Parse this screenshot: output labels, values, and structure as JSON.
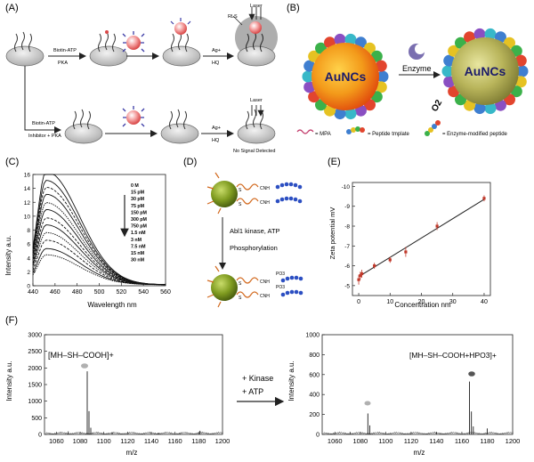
{
  "panels": {
    "A": "(A)",
    "B": "(B)",
    "C": "(C)",
    "D": "(D)",
    "E": "(E)",
    "F": "(F)"
  },
  "panel_a": {
    "top_steps": [
      "Biotin-ATP",
      "PKA"
    ],
    "ag_label": "Ag+",
    "hq_label": "HQ",
    "laser": "Laser",
    "rls": "RLS",
    "bottom_steps": [
      "Biotin-ATP",
      "Inhibitor + PKA"
    ],
    "no_signal": "No Signal Detected"
  },
  "panel_b": {
    "core_left": "AuNCs",
    "core_right": "AuNCs",
    "enzyme": "Enzyme",
    "o2": "O2",
    "legend": [
      "= MPA",
      "= Peptide tmplate",
      "= Enzyme-modified peptide"
    ]
  },
  "panel_d": {
    "step1": "Abl1 kinase, ATP",
    "step2": "Phosphorylation",
    "chem_top": [
      "S",
      "S",
      "CNH",
      "CNH"
    ],
    "chem_bottom": [
      "S",
      "S",
      "CNH",
      "CNH"
    ],
    "po3": "PO3"
  },
  "panel_f": {
    "left_label": "[MH–SH–COOH]+",
    "right_label": "[MH–SH–COOH+HPO3]+",
    "arrow_lines": [
      "+ Kinase",
      "+ ATP"
    ]
  },
  "chart_data": [
    {
      "type": "line",
      "panel": "C",
      "xlabel": "Wavelength nm",
      "ylabel": "Intensity a.u.",
      "xlim": [
        440,
        560
      ],
      "ylim": [
        0,
        16
      ],
      "xticks": [
        "440",
        "460",
        "480",
        "500",
        "520",
        "540",
        "560"
      ],
      "yticks": [
        "0",
        "2",
        "4",
        "6",
        "8",
        "10",
        "12",
        "14",
        "16"
      ],
      "legend": [
        "0 M",
        "15 pM",
        "30 pM",
        "75 pM",
        "150 pM",
        "300 pM",
        "750 pM",
        "1.5 nM",
        "3 nM",
        "7.5 nM",
        "15 nM",
        "30 nM"
      ],
      "peak_x": 452,
      "series": [
        {
          "name": "0 M",
          "peak": 16.3
        },
        {
          "name": "15 pM",
          "peak": 15.0
        },
        {
          "name": "30 pM",
          "peak": 14.0
        },
        {
          "name": "75 pM",
          "peak": 13.0
        },
        {
          "name": "150 pM",
          "peak": 11.8
        },
        {
          "name": "300 pM",
          "peak": 10.8
        },
        {
          "name": "750 pM",
          "peak": 9.6
        },
        {
          "name": "1.5 nM",
          "peak": 8.6
        },
        {
          "name": "3 nM",
          "peak": 7.5
        },
        {
          "name": "7.5 nM",
          "peak": 6.4
        },
        {
          "name": "15 nM",
          "peak": 5.2
        },
        {
          "name": "30 nM",
          "peak": 4.3
        }
      ]
    },
    {
      "type": "scatter",
      "panel": "E",
      "xlabel": "Concentration nm",
      "ylabel": "Zeta potential mV",
      "xlim": [
        0,
        40
      ],
      "ylim": [
        -4,
        -10
      ],
      "xticks": [
        "0",
        "10",
        "20",
        "30",
        "40"
      ],
      "yticks": [
        "-4",
        "-5",
        "-6",
        "-7",
        "-8",
        "-9",
        "-10"
      ],
      "x": [
        0,
        0.5,
        1,
        5,
        10,
        15,
        25,
        40
      ],
      "y": [
        -5.3,
        -5.5,
        -5.6,
        -6.0,
        -6.3,
        -6.7,
        -8.0,
        -9.4
      ],
      "err": [
        0.25,
        0.2,
        0.2,
        0.15,
        0.15,
        0.25,
        0.2,
        0.15
      ],
      "fit": {
        "x": [
          0,
          40
        ],
        "y": [
          -5.45,
          -9.35
        ]
      }
    },
    {
      "type": "line",
      "panel": "F-left",
      "xlabel": "m/z",
      "ylabel": "Intensity a.u.",
      "xlim": [
        1050,
        1200
      ],
      "ylim": [
        0,
        3000
      ],
      "xticks": [
        "1060",
        "1080",
        "1100",
        "1120",
        "1140",
        "1160",
        "1180",
        "1200"
      ],
      "yticks": [
        "0",
        "500",
        "1000",
        "1500",
        "2000",
        "2500",
        "3000"
      ],
      "peaks": [
        {
          "x": 1086,
          "y": 1900
        },
        {
          "x": 1087.5,
          "y": 700
        },
        {
          "x": 1089,
          "y": 200
        },
        {
          "x": 1070,
          "y": 90
        },
        {
          "x": 1107,
          "y": 60
        },
        {
          "x": 1146,
          "y": 50
        },
        {
          "x": 1164,
          "y": 40
        },
        {
          "x": 1181,
          "y": 110
        }
      ]
    },
    {
      "type": "line",
      "panel": "F-right",
      "xlabel": "m/z",
      "ylabel": "Intensity a.u.",
      "xlim": [
        1050,
        1200
      ],
      "ylim": [
        0,
        1000
      ],
      "xticks": [
        "1060",
        "1080",
        "1100",
        "1120",
        "1140",
        "1160",
        "1180",
        "1200"
      ],
      "yticks": [
        "0",
        "200",
        "400",
        "600",
        "800",
        "1000"
      ],
      "peaks": [
        {
          "x": 1086,
          "y": 210
        },
        {
          "x": 1087.5,
          "y": 90
        },
        {
          "x": 1166,
          "y": 530
        },
        {
          "x": 1167.5,
          "y": 230
        },
        {
          "x": 1169,
          "y": 80
        },
        {
          "x": 1180,
          "y": 60
        },
        {
          "x": 1072,
          "y": 25
        },
        {
          "x": 1140,
          "y": 20
        }
      ]
    }
  ]
}
